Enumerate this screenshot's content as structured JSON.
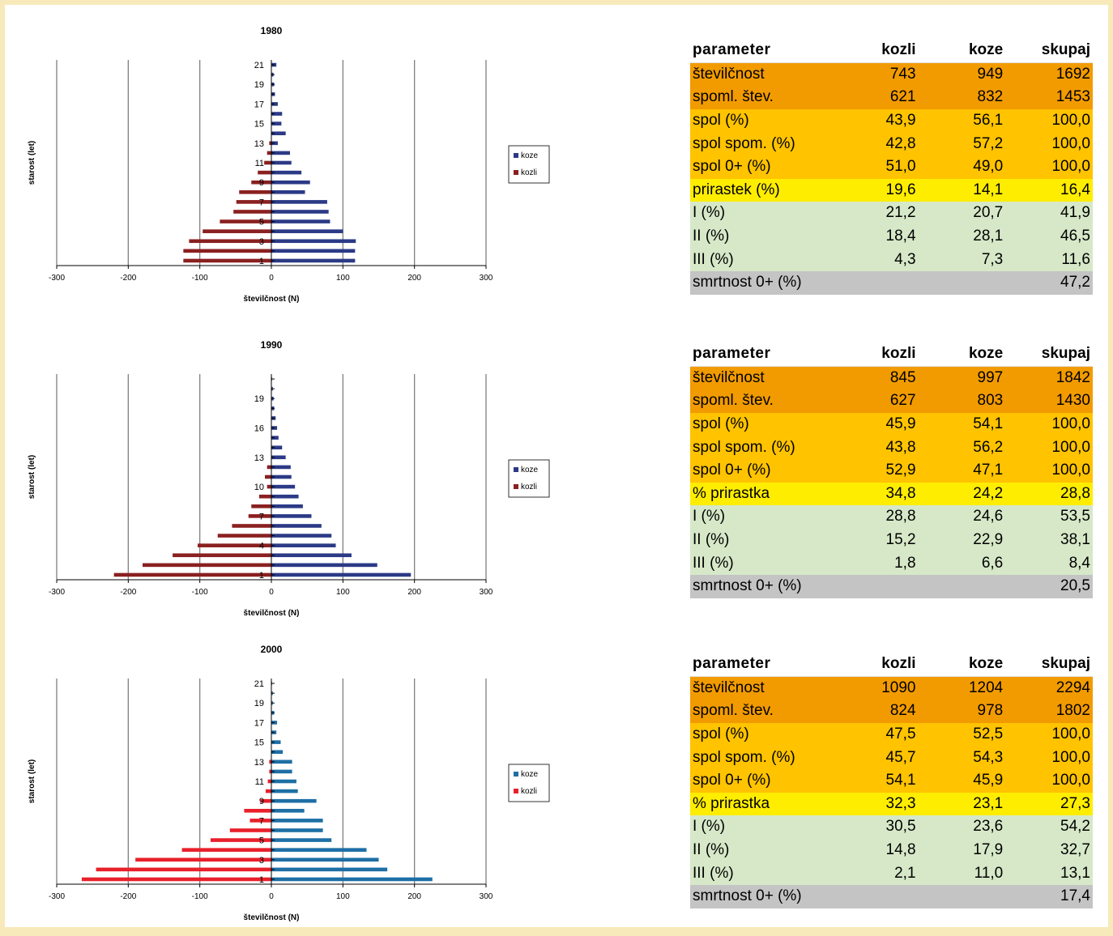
{
  "chart_data": [
    {
      "type": "bar",
      "orientation": "horizontal-population-pyramid",
      "title": "1980",
      "xlabel": "številčnost  (N)",
      "ylabel": "starost (let)",
      "xlim": [
        -300,
        300
      ],
      "xticks": [
        -300,
        -200,
        -100,
        0,
        100,
        200,
        300
      ],
      "y_tick_labels": [
        "1",
        "3",
        "5",
        "7",
        "9",
        "11",
        "13",
        "15",
        "17",
        "19",
        "21"
      ],
      "categories": [
        1,
        2,
        3,
        4,
        5,
        6,
        7,
        8,
        9,
        10,
        11,
        12,
        13,
        14,
        15,
        16,
        17,
        18,
        19,
        20,
        21
      ],
      "legend_position": "right",
      "series": [
        {
          "name": "koze",
          "color": "#2b3a86",
          "values": [
            117,
            117,
            118,
            100,
            82,
            80,
            78,
            47,
            54,
            42,
            28,
            26,
            9,
            20,
            14,
            15,
            9,
            5,
            4,
            3,
            7
          ]
        },
        {
          "name": "kozli",
          "color": "#8a2020",
          "values": [
            -123,
            -123,
            -115,
            -96,
            -72,
            -53,
            -49,
            -45,
            -28,
            -19,
            -10,
            -6,
            -3,
            0,
            0,
            0,
            0,
            0,
            0,
            0,
            0
          ]
        }
      ]
    },
    {
      "type": "bar",
      "orientation": "horizontal-population-pyramid",
      "title": "1990",
      "xlabel": "številčnost (N)",
      "ylabel": "starost (let)",
      "xlim": [
        -300,
        300
      ],
      "xticks": [
        -300,
        -200,
        -100,
        0,
        100,
        200,
        300
      ],
      "y_tick_labels": [
        "1",
        "4",
        "7",
        "10",
        "13",
        "16",
        "19"
      ],
      "categories": [
        1,
        2,
        3,
        4,
        5,
        6,
        7,
        8,
        9,
        10,
        11,
        12,
        13,
        14,
        15,
        16,
        17,
        18,
        19,
        20,
        21
      ],
      "legend_position": "right",
      "series": [
        {
          "name": "koze",
          "color": "#2b3a86",
          "values": [
            195,
            148,
            112,
            90,
            84,
            70,
            56,
            44,
            38,
            33,
            28,
            27,
            20,
            15,
            10,
            8,
            6,
            4,
            3,
            2,
            1
          ]
        },
        {
          "name": "kozli",
          "color": "#8a2020",
          "values": [
            -220,
            -180,
            -138,
            -103,
            -75,
            -55,
            -32,
            -28,
            -17,
            -6,
            -9,
            -6,
            0,
            0,
            0,
            0,
            0,
            0,
            0,
            0,
            0
          ]
        }
      ]
    },
    {
      "type": "bar",
      "orientation": "horizontal-population-pyramid",
      "title": "2000",
      "xlabel": "številčnost  (N)",
      "ylabel": "starost (let)",
      "xlim": [
        -300,
        300
      ],
      "xticks": [
        -300,
        -200,
        -100,
        0,
        100,
        200,
        300
      ],
      "y_tick_labels": [
        "1",
        "3",
        "5",
        "7",
        "9",
        "11",
        "13",
        "15",
        "17",
        "19",
        "21"
      ],
      "categories": [
        1,
        2,
        3,
        4,
        5,
        6,
        7,
        8,
        9,
        10,
        11,
        12,
        13,
        14,
        15,
        16,
        17,
        18,
        19,
        20,
        21
      ],
      "legend_position": "right",
      "series": [
        {
          "name": "koze",
          "color": "#1e6fa5",
          "values": [
            225,
            162,
            150,
            133,
            84,
            72,
            72,
            46,
            63,
            37,
            35,
            29,
            29,
            16,
            13,
            7,
            8,
            4,
            2,
            2,
            1
          ]
        },
        {
          "name": "kozli",
          "color": "#e8202a",
          "values": [
            -265,
            -245,
            -190,
            -125,
            -85,
            -58,
            -30,
            -38,
            -15,
            -8,
            -5,
            -3,
            -3,
            0,
            0,
            0,
            0,
            0,
            0,
            0,
            0
          ]
        }
      ]
    }
  ],
  "tables": [
    {
      "header": [
        "parameter",
        "kozli",
        "koze",
        "skupaj"
      ],
      "rows": [
        {
          "cells": [
            "številčnost",
            "743",
            "949",
            "1692"
          ],
          "color": "#f29b00"
        },
        {
          "cells": [
            "spoml. štev.",
            "621",
            "832",
            "1453"
          ],
          "color": "#f29b00"
        },
        {
          "cells": [
            "spol (%)",
            "43,9",
            "56,1",
            "100,0"
          ],
          "color": "#ffc300"
        },
        {
          "cells": [
            "spol spom. (%)",
            "42,8",
            "57,2",
            "100,0"
          ],
          "color": "#ffc300"
        },
        {
          "cells": [
            "spol 0+ (%)",
            "51,0",
            "49,0",
            "100,0"
          ],
          "color": "#ffc300"
        },
        {
          "cells": [
            "prirastek (%)",
            "19,6",
            "14,1",
            "16,4"
          ],
          "color": "#ffed00"
        },
        {
          "cells": [
            "I (%)",
            "21,2",
            "20,7",
            "41,9"
          ],
          "color": "#d6e8c8"
        },
        {
          "cells": [
            "II (%)",
            "18,4",
            "28,1",
            "46,5"
          ],
          "color": "#d6e8c8"
        },
        {
          "cells": [
            "III (%)",
            "4,3",
            "7,3",
            "11,6"
          ],
          "color": "#d6e8c8"
        },
        {
          "cells": [
            "smrtnost 0+ (%)",
            "",
            "",
            "47,2"
          ],
          "color": "#c4c4c4"
        }
      ]
    },
    {
      "header": [
        "parameter",
        "kozli",
        "koze",
        "skupaj"
      ],
      "rows": [
        {
          "cells": [
            "številčnost",
            "845",
            "997",
            "1842"
          ],
          "color": "#f29b00"
        },
        {
          "cells": [
            "spoml. štev.",
            "627",
            "803",
            "1430"
          ],
          "color": "#f29b00"
        },
        {
          "cells": [
            "spol (%)",
            "45,9",
            "54,1",
            "100,0"
          ],
          "color": "#ffc300"
        },
        {
          "cells": [
            "spol spom. (%)",
            "43,8",
            "56,2",
            "100,0"
          ],
          "color": "#ffc300"
        },
        {
          "cells": [
            "spol 0+ (%)",
            "52,9",
            "47,1",
            "100,0"
          ],
          "color": "#ffc300"
        },
        {
          "cells": [
            "% prirastka",
            "34,8",
            "24,2",
            "28,8"
          ],
          "color": "#ffed00"
        },
        {
          "cells": [
            "I (%)",
            "28,8",
            "24,6",
            "53,5"
          ],
          "color": "#d6e8c8"
        },
        {
          "cells": [
            "II (%)",
            "15,2",
            "22,9",
            "38,1"
          ],
          "color": "#d6e8c8"
        },
        {
          "cells": [
            "III (%)",
            "1,8",
            "6,6",
            "8,4"
          ],
          "color": "#d6e8c8"
        },
        {
          "cells": [
            "smrtnost 0+ (%)",
            "",
            "",
            "20,5"
          ],
          "color": "#c4c4c4"
        }
      ]
    },
    {
      "header": [
        "parameter",
        "kozli",
        "koze",
        "skupaj"
      ],
      "rows": [
        {
          "cells": [
            "številčnost",
            "1090",
            "1204",
            "2294"
          ],
          "color": "#f29b00"
        },
        {
          "cells": [
            "spoml. štev.",
            "824",
            "978",
            "1802"
          ],
          "color": "#f29b00"
        },
        {
          "cells": [
            "spol (%)",
            "47,5",
            "52,5",
            "100,0"
          ],
          "color": "#ffc300"
        },
        {
          "cells": [
            "spol spom. (%)",
            "45,7",
            "54,3",
            "100,0"
          ],
          "color": "#ffc300"
        },
        {
          "cells": [
            "spol 0+ (%)",
            "54,1",
            "45,9",
            "100,0"
          ],
          "color": "#ffc300"
        },
        {
          "cells": [
            "% prirastka",
            "32,3",
            "23,1",
            "27,3"
          ],
          "color": "#ffed00"
        },
        {
          "cells": [
            "I (%)",
            "30,5",
            "23,6",
            "54,2"
          ],
          "color": "#d6e8c8"
        },
        {
          "cells": [
            "II (%)",
            "14,8",
            "17,9",
            "32,7"
          ],
          "color": "#d6e8c8"
        },
        {
          "cells": [
            "III (%)",
            "2,1",
            "11,0",
            "13,1"
          ],
          "color": "#d6e8c8"
        },
        {
          "cells": [
            "smrtnost 0+ (%)",
            "",
            "",
            "17,4"
          ],
          "color": "#c4c4c4"
        }
      ]
    }
  ],
  "colors": {
    "page_border": "#f7e9b9",
    "gridline": "#808080"
  }
}
